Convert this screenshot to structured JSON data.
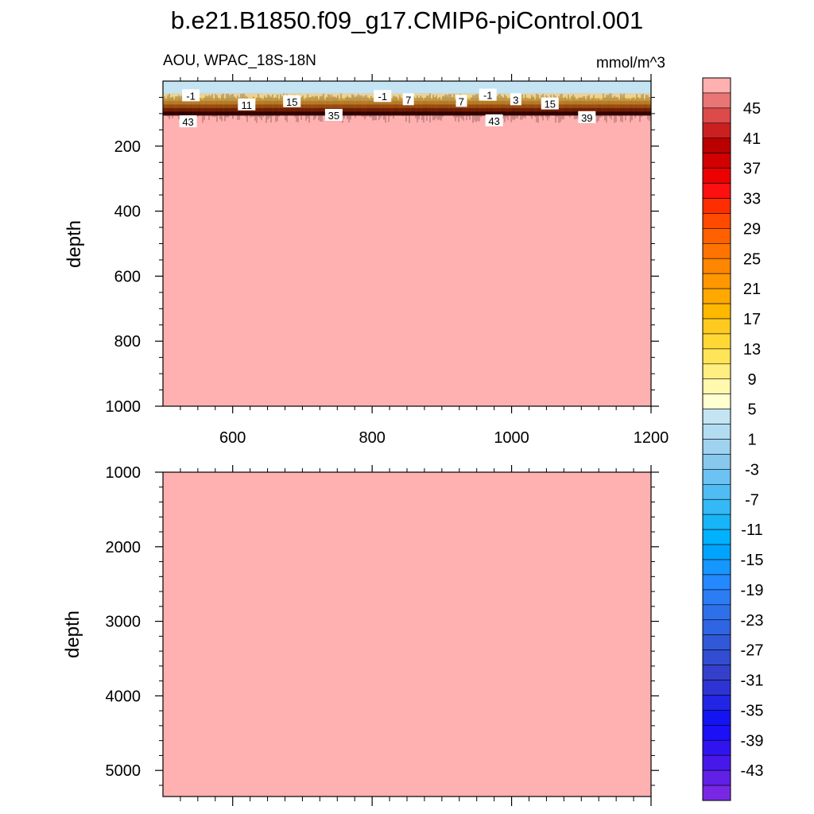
{
  "figure": {
    "title": "b.e21.B1850.f09_g17.CMIP6-piControl.001"
  },
  "colors": {
    "background_fill": "#ffb0b0",
    "surface_band": "#c4e4f4",
    "thermocline_dark": "#2a0000",
    "frame": "#000000"
  },
  "chart_data": [
    {
      "type": "heatmap",
      "panel": "upper",
      "variable": "AOU",
      "title_left": "AOU, WPAC_18S-18N",
      "title_right": "mmol/m^3",
      "xlabel": "",
      "ylabel": "depth",
      "xlim": [
        500,
        1200
      ],
      "ylim": [
        1000,
        0
      ],
      "x_ticks": [
        600,
        800,
        1000,
        1200
      ],
      "y_ticks": [
        200,
        400,
        600,
        800,
        1000
      ],
      "fill_below_thermocline": 45,
      "surface_value": -1,
      "contour_labels": [
        {
          "text": "-1",
          "x": 540,
          "y": 45
        },
        {
          "text": "11",
          "x": 620,
          "y": 73
        },
        {
          "text": "15",
          "x": 685,
          "y": 63
        },
        {
          "text": "35",
          "x": 745,
          "y": 105
        },
        {
          "text": "-1",
          "x": 815,
          "y": 47
        },
        {
          "text": "7",
          "x": 852,
          "y": 57
        },
        {
          "text": "7",
          "x": 928,
          "y": 62
        },
        {
          "text": "-1",
          "x": 966,
          "y": 43
        },
        {
          "text": "3",
          "x": 1006,
          "y": 57
        },
        {
          "text": "15",
          "x": 1055,
          "y": 70
        },
        {
          "text": "39",
          "x": 1108,
          "y": 112
        },
        {
          "text": "43",
          "x": 536,
          "y": 125
        },
        {
          "text": "43",
          "x": 975,
          "y": 122
        }
      ]
    },
    {
      "type": "heatmap",
      "panel": "lower",
      "variable": "AOU",
      "xlabel": "",
      "ylabel": "depth",
      "xlim": [
        500,
        1200
      ],
      "ylim": [
        5350,
        1000
      ],
      "y_ticks": [
        1000,
        2000,
        3000,
        4000,
        5000
      ],
      "fill_value": 45
    }
  ],
  "colorbar": {
    "min": -47,
    "max": 49,
    "step": 2,
    "labels": [
      "45",
      "41",
      "37",
      "33",
      "29",
      "25",
      "21",
      "17",
      "13",
      "9",
      "5",
      "1",
      "-3",
      "-7",
      "-11",
      "-15",
      "-19",
      "-23",
      "-27",
      "-31",
      "-35",
      "-39",
      "-43"
    ],
    "label_values": [
      45,
      41,
      37,
      33,
      29,
      25,
      21,
      17,
      13,
      9,
      5,
      1,
      -3,
      -7,
      -11,
      -15,
      -19,
      -23,
      -27,
      -31,
      -35,
      -39,
      -43
    ],
    "box_colors": [
      "#ffb0b0",
      "#ea7575",
      "#dd4a4a",
      "#cc2020",
      "#bb0000",
      "#d20000",
      "#ec0000",
      "#ff1010",
      "#ff2e00",
      "#ff4a00",
      "#ff6000",
      "#ff7400",
      "#ff8600",
      "#ff9800",
      "#ffa800",
      "#ffb800",
      "#ffca20",
      "#ffd835",
      "#ffe458",
      "#ffee80",
      "#fff8ae",
      "#ffffd0",
      "#c4e4f4",
      "#b2dcf2",
      "#9ed2ee",
      "#88c8ec",
      "#6cc2f2",
      "#50bcf4",
      "#34b8f6",
      "#18b4f8",
      "#00b2fe",
      "#00a4ff",
      "#1696ff",
      "#2488ff",
      "#2c7cf4",
      "#2e70ea",
      "#2f64e2",
      "#3058d8",
      "#324cd2",
      "#3440cc",
      "#2e34d4",
      "#2226e4",
      "#1414f2",
      "#1c10f6",
      "#3014f0",
      "#4818ea",
      "#6020e6",
      "#7828e4"
    ]
  }
}
